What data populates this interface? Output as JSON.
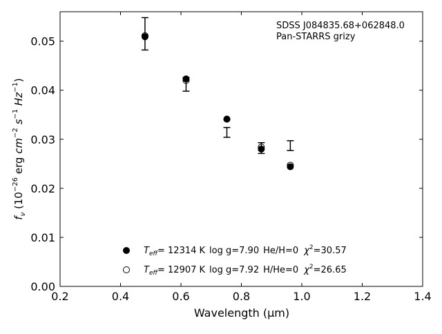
{
  "chart_data": {
    "type": "scatter",
    "xlabel": "Wavelength (μm)",
    "ylabel": "f_ν (10⁻²⁶ erg cm⁻² s⁻¹ Hz⁻¹)",
    "xlim": [
      0.2,
      1.4
    ],
    "ylim": [
      0.0,
      0.056
    ],
    "x_ticks": [
      0.2,
      0.4,
      0.6,
      0.8,
      1.0,
      1.2,
      1.4
    ],
    "x_tick_labels": [
      "0.2",
      "0.4",
      "0.6",
      "0.8",
      "1.0",
      "1.2",
      "1.4"
    ],
    "y_ticks": [
      0.0,
      0.01,
      0.02,
      0.03,
      0.04,
      0.05
    ],
    "y_tick_labels": [
      "0.00",
      "0.01",
      "0.02",
      "0.03",
      "0.04",
      "0.05"
    ],
    "grid": false,
    "legend_position": "bottom-center",
    "annotations": [
      "SDSS J084835.68+062848.0",
      "Pan-STARRS grizy"
    ],
    "observed": {
      "x": [
        0.481,
        0.617,
        0.752,
        0.866,
        0.962
      ],
      "y": [
        0.0515,
        0.0412,
        0.0314,
        0.0282,
        0.0287
      ],
      "yerr": [
        0.0033,
        0.0014,
        0.001,
        0.0011,
        0.001
      ]
    },
    "series": [
      {
        "legend": {
          "teff_prefix": "T",
          "teff_sub": "eff",
          "teff": "= 12314 K",
          "logg": "log g=7.90",
          "comp": "He/H=0",
          "chi": "χ",
          "chi_sup": "2",
          "chi_val": "=30.57"
        },
        "marker": "filled-circle",
        "x": [
          0.481,
          0.617,
          0.752,
          0.866,
          0.962
        ],
        "y": [
          0.0509,
          0.0423,
          0.0341,
          0.028,
          0.0244
        ]
      },
      {
        "legend": {
          "teff_prefix": "T",
          "teff_sub": "eff",
          "teff": "= 12907 K",
          "logg": "log g=7.92",
          "comp": "H/He=0",
          "chi": "χ",
          "chi_sup": "2",
          "chi_val": "=26.65"
        },
        "marker": "open-circle",
        "x": [
          0.481,
          0.617,
          0.752,
          0.866,
          0.962
        ],
        "y": [
          0.0511,
          0.042,
          0.0341,
          0.0284,
          0.0247
        ]
      }
    ]
  }
}
